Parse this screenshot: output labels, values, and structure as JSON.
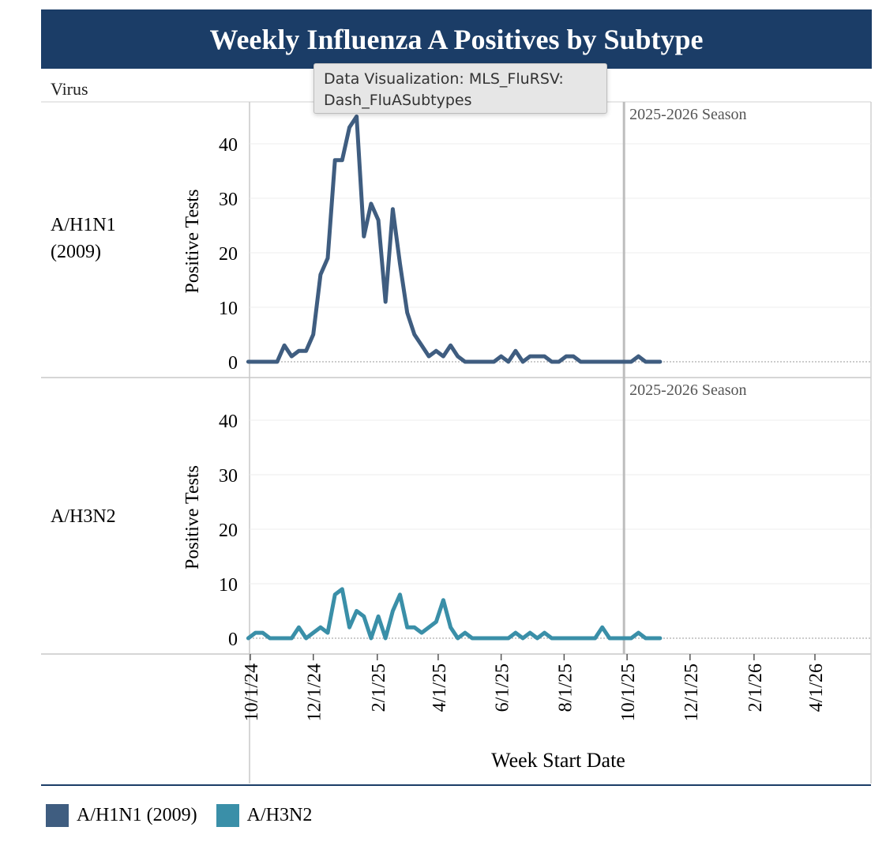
{
  "title": "Weekly Influenza A Positives by Subtype",
  "row_header": "Virus",
  "tooltip": {
    "line1": "Data Visualization: MLS_FluRSV:",
    "line2": "Dash_FluASubtypes"
  },
  "legend": [
    {
      "label": "A/H1N1 (2009)",
      "color": "#3f5d80"
    },
    {
      "label": "A/H3N2",
      "color": "#3a8fa8"
    }
  ],
  "chart_data": {
    "type": "line",
    "xlabel": "Week Start Date",
    "ylabel": "Positive Tests",
    "ylim": [
      0,
      47
    ],
    "yticks": [
      0,
      10,
      20,
      30,
      40
    ],
    "x_range": [
      "2024-09-29",
      "2026-06-01"
    ],
    "x_ticks": [
      {
        "label": "10/1/24",
        "date": "2024-10-01"
      },
      {
        "label": "12/1/24",
        "date": "2024-12-01"
      },
      {
        "label": "2/1/25",
        "date": "2025-02-01"
      },
      {
        "label": "4/1/25",
        "date": "2025-04-01"
      },
      {
        "label": "6/1/25",
        "date": "2025-06-01"
      },
      {
        "label": "8/1/25",
        "date": "2025-08-01"
      },
      {
        "label": "10/1/25",
        "date": "2025-10-01"
      },
      {
        "label": "12/1/25",
        "date": "2025-12-01"
      },
      {
        "label": "2/1/26",
        "date": "2026-02-01"
      },
      {
        "label": "4/1/26",
        "date": "2026-04-01"
      }
    ],
    "reference_line": {
      "date": "2025-09-28",
      "label": "2025-2026 Season"
    },
    "grid": true,
    "legend_position": "bottom",
    "dates": [
      "2024-09-29",
      "2024-10-06",
      "2024-10-13",
      "2024-10-20",
      "2024-10-27",
      "2024-11-03",
      "2024-11-10",
      "2024-11-17",
      "2024-11-24",
      "2024-12-01",
      "2024-12-08",
      "2024-12-15",
      "2024-12-22",
      "2024-12-29",
      "2025-01-05",
      "2025-01-12",
      "2025-01-19",
      "2025-01-26",
      "2025-02-02",
      "2025-02-09",
      "2025-02-16",
      "2025-02-23",
      "2025-03-02",
      "2025-03-09",
      "2025-03-16",
      "2025-03-23",
      "2025-03-30",
      "2025-04-06",
      "2025-04-13",
      "2025-04-20",
      "2025-04-27",
      "2025-05-04",
      "2025-05-11",
      "2025-05-18",
      "2025-05-25",
      "2025-06-01",
      "2025-06-08",
      "2025-06-15",
      "2025-06-22",
      "2025-06-29",
      "2025-07-06",
      "2025-07-13",
      "2025-07-20",
      "2025-07-27",
      "2025-08-03",
      "2025-08-10",
      "2025-08-17",
      "2025-08-24",
      "2025-08-31",
      "2025-09-07",
      "2025-09-14",
      "2025-09-21",
      "2025-09-28",
      "2025-10-05",
      "2025-10-12",
      "2025-10-19",
      "2025-10-26",
      "2025-11-02"
    ],
    "series": [
      {
        "name": "A/H1N1 (2009)",
        "row_label": "A/H1N1 (2009)",
        "color": "#3f5d80",
        "values": [
          0,
          0,
          0,
          0,
          0,
          3,
          1,
          2,
          2,
          5,
          16,
          19,
          37,
          37,
          43,
          45,
          23,
          29,
          26,
          11,
          28,
          18,
          9,
          5,
          3,
          1,
          2,
          1,
          3,
          1,
          0,
          0,
          0,
          0,
          0,
          1,
          0,
          2,
          0,
          1,
          1,
          1,
          0,
          0,
          1,
          1,
          0,
          0,
          0,
          0,
          0,
          0,
          0,
          0,
          1,
          0,
          0,
          0
        ]
      },
      {
        "name": "A/H3N2",
        "row_label": "A/H3N2",
        "color": "#3a8fa8",
        "values": [
          0,
          1,
          1,
          0,
          0,
          0,
          0,
          2,
          0,
          1,
          2,
          1,
          8,
          9,
          2,
          5,
          4,
          0,
          4,
          0,
          5,
          8,
          2,
          2,
          1,
          2,
          3,
          7,
          2,
          0,
          1,
          0,
          0,
          0,
          0,
          0,
          0,
          1,
          0,
          1,
          0,
          1,
          0,
          0,
          0,
          0,
          0,
          0,
          0,
          2,
          0,
          0,
          0,
          0,
          1,
          0,
          0,
          0
        ]
      }
    ]
  }
}
